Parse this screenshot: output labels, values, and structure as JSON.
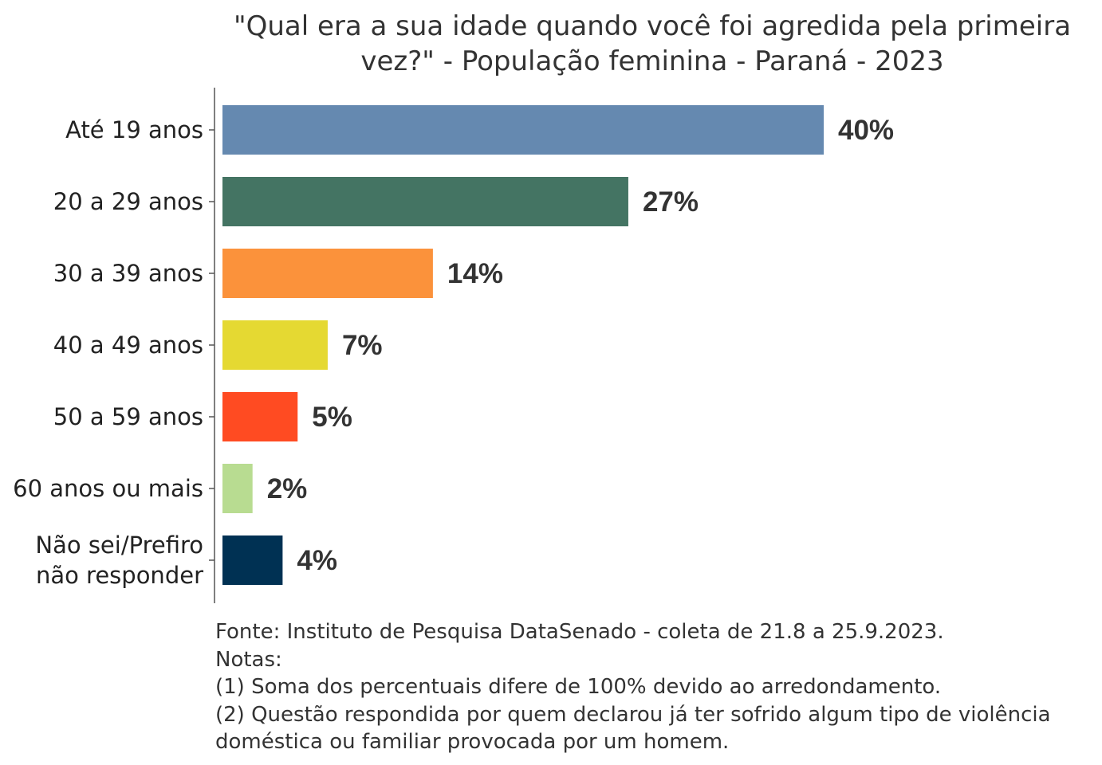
{
  "chart_data": {
    "type": "bar",
    "orientation": "horizontal",
    "title_lines": [
      "\"Qual era a sua idade quando você foi agredida pela primeira",
      "vez?\" - População feminina - Paraná - 2023"
    ],
    "categories": [
      [
        "Até 19 anos"
      ],
      [
        "20 a 29 anos"
      ],
      [
        "30 a 39 anos"
      ],
      [
        "40 a 49 anos"
      ],
      [
        "50 a 59 anos"
      ],
      [
        "60 anos ou mais"
      ],
      [
        "Não sei/Prefiro",
        "não responder"
      ]
    ],
    "values": [
      40,
      27,
      14,
      7,
      5,
      2,
      4
    ],
    "value_labels": [
      "40%",
      "27%",
      "14%",
      "7%",
      "5%",
      "2%",
      "4%"
    ],
    "colors": [
      "#6589b0",
      "#447463",
      "#fb923b",
      "#e5d932",
      "#ff4b22",
      "#b8dc91",
      "#003153"
    ],
    "xlim": [
      0,
      40
    ],
    "grid": false,
    "legend": "none"
  },
  "footnotes": {
    "source": "Fonte: Instituto de Pesquisa DataSenado - coleta de 21.8 a 25.9.2023.",
    "notes_heading": "Notas:",
    "note1": "(1) Soma dos percentuais difere de 100% devido ao arredondamento.",
    "note2_line1": "(2) Questão respondida por quem declarou já ter sofrido algum tipo de violência",
    "note2_line2": "doméstica ou familiar provocada por um homem."
  }
}
